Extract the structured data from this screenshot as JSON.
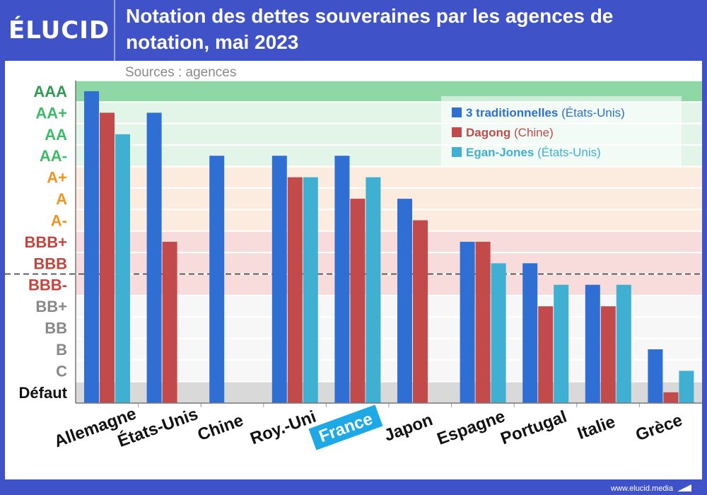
{
  "brand": {
    "logo_text": "ÉLUCID",
    "footer_url": "www.elucid.media"
  },
  "chart_data": {
    "type": "bar",
    "title": "Notation des dettes souveraines par les agences de notation, mai 2023",
    "subtitle": "Sources : agences",
    "xlabel": "",
    "ylabel": "",
    "rating_scale": [
      "Défaut",
      "C",
      "B",
      "BB",
      "BB+",
      "BBB-",
      "BBB",
      "BBB+",
      "A-",
      "A",
      "A+",
      "AA-",
      "AA",
      "AA+",
      "AAA"
    ],
    "rating_colors": {
      "AAA": "#2f9a52",
      "AA+": "#3dbb66",
      "AA": "#3dbb66",
      "AA-": "#3dbb66",
      "A+": "#ee9420",
      "A": "#ee9420",
      "A-": "#ee9420",
      "BBB+": "#c4453e",
      "BBB": "#c4453e",
      "BBB-": "#c4453e",
      "BB+": "#888888",
      "BB": "#888888",
      "B": "#888888",
      "C": "#888888",
      "Défaut": "#111111"
    },
    "ylim": [
      "Défaut",
      "AAA"
    ],
    "investment_grade_threshold": "BBB-",
    "categories": [
      "Allemagne",
      "États-Unis",
      "Chine",
      "Roy.-Uni",
      "France",
      "Japon",
      "Espagne",
      "Portugal",
      "Italie",
      "Grèce"
    ],
    "highlighted_category": "France",
    "series": [
      {
        "name": "3 traditionnelles",
        "origin": "(États-Unis)",
        "color": "#2f6fd4",
        "values": [
          "AAA",
          "AA+",
          "AA-",
          "AA-",
          "AA-",
          "A",
          "BBB+",
          "BBB",
          "BBB-",
          "B"
        ]
      },
      {
        "name": "Dagong",
        "origin": "(Chine)",
        "color": "#c24a4a",
        "values": [
          "AA+",
          "BBB+",
          null,
          "A+",
          "A",
          "A-",
          "BBB+",
          "BB+",
          "BB+",
          "Défaut"
        ]
      },
      {
        "name": "Egan-Jones",
        "origin": "(États-Unis)",
        "color": "#3fb0d2",
        "values": [
          "AA",
          null,
          null,
          "A+",
          "A+",
          null,
          "BBB",
          "BBB-",
          "BBB-",
          "C"
        ]
      }
    ],
    "legend_position": "top-right",
    "grid": true
  }
}
